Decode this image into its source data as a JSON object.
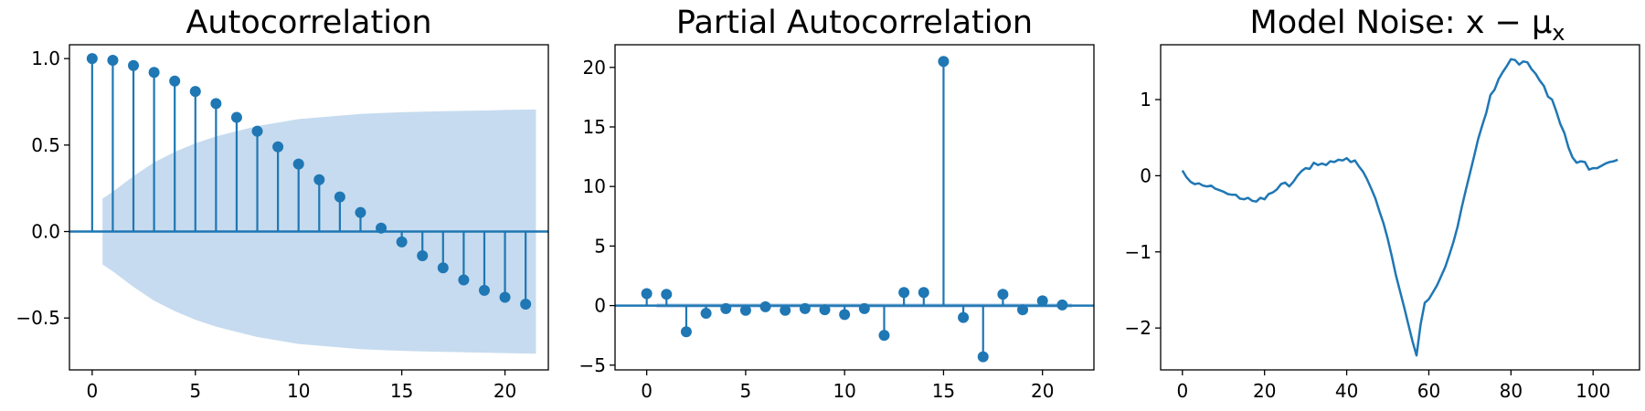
{
  "colors": {
    "series": "#1f77b4",
    "band": "#c6dbef",
    "axis": "#000000"
  },
  "chart_data": [
    {
      "type": "stem",
      "title": "Autocorrelation",
      "grid": false,
      "xlim": [
        -1.1,
        22.1
      ],
      "ylim": [
        -0.8,
        1.08
      ],
      "xticks": [
        0,
        5,
        10,
        15,
        20
      ],
      "xtick_labels": [
        "0",
        "5",
        "10",
        "15",
        "20"
      ],
      "yticks": [
        -0.5,
        0.0,
        0.5,
        1.0
      ],
      "ytick_labels": [
        "−0.5",
        "0.0",
        "0.5",
        "1.0"
      ],
      "x": [
        0,
        1,
        2,
        3,
        4,
        5,
        6,
        7,
        8,
        9,
        10,
        11,
        12,
        13,
        14,
        15,
        16,
        17,
        18,
        19,
        20,
        21
      ],
      "values": [
        1.0,
        0.99,
        0.96,
        0.92,
        0.87,
        0.81,
        0.74,
        0.66,
        0.58,
        0.49,
        0.39,
        0.3,
        0.2,
        0.11,
        0.02,
        -0.06,
        -0.14,
        -0.21,
        -0.28,
        -0.34,
        -0.38,
        -0.42
      ],
      "confidence_band": {
        "x": [
          0.5,
          1,
          2,
          3,
          4,
          5,
          6,
          7,
          8,
          9,
          10,
          11,
          12,
          13,
          14,
          15,
          16,
          17,
          18,
          19,
          20,
          21,
          21.5
        ],
        "upper": [
          0.19,
          0.23,
          0.32,
          0.4,
          0.46,
          0.51,
          0.55,
          0.58,
          0.61,
          0.63,
          0.65,
          0.66,
          0.67,
          0.68,
          0.685,
          0.69,
          0.693,
          0.696,
          0.698,
          0.7,
          0.703,
          0.705,
          0.706
        ]
      }
    },
    {
      "type": "stem",
      "title": "Partial Autocorrelation",
      "grid": false,
      "xlim": [
        -1.6,
        22.6
      ],
      "ylim": [
        -5.4,
        21.9
      ],
      "xticks": [
        0,
        5,
        10,
        15,
        20
      ],
      "xtick_labels": [
        "0",
        "5",
        "10",
        "15",
        "20"
      ],
      "yticks": [
        -5,
        0,
        5,
        10,
        15,
        20
      ],
      "ytick_labels": [
        "−5",
        "0",
        "5",
        "10",
        "15",
        "20"
      ],
      "x": [
        0,
        1,
        2,
        3,
        4,
        5,
        6,
        7,
        8,
        9,
        10,
        11,
        12,
        13,
        14,
        15,
        16,
        17,
        18,
        19,
        20,
        21
      ],
      "values": [
        1.0,
        0.95,
        -2.2,
        -0.65,
        -0.25,
        -0.4,
        -0.1,
        -0.4,
        -0.25,
        -0.35,
        -0.75,
        -0.25,
        -2.5,
        1.1,
        1.1,
        20.5,
        -1.0,
        -4.3,
        0.95,
        -0.35,
        0.4,
        0.05
      ],
      "confidence_band": {
        "upper": 0.19
      }
    },
    {
      "type": "line",
      "title": "Model Noise: x − μ",
      "title_subscript": "x",
      "grid": false,
      "xlim": [
        -5.3,
        111.3
      ],
      "ylim": [
        -2.55,
        1.72
      ],
      "xticks": [
        0,
        20,
        40,
        60,
        80,
        100
      ],
      "xtick_labels": [
        "0",
        "20",
        "40",
        "60",
        "80",
        "100"
      ],
      "yticks": [
        -2,
        -1,
        0,
        1
      ],
      "ytick_labels": [
        "−2",
        "−1",
        "0",
        "1"
      ],
      "x": [
        0,
        1,
        2,
        3,
        4,
        5,
        6,
        7,
        8,
        9,
        10,
        11,
        12,
        13,
        14,
        15,
        16,
        17,
        18,
        19,
        20,
        21,
        22,
        23,
        24,
        25,
        26,
        27,
        28,
        29,
        30,
        31,
        32,
        33,
        34,
        35,
        36,
        37,
        38,
        39,
        40,
        41,
        42,
        43,
        44,
        45,
        46,
        47,
        48,
        49,
        50,
        51,
        52,
        53,
        54,
        55,
        56,
        57,
        58,
        59,
        60,
        61,
        62,
        63,
        64,
        65,
        66,
        67,
        68,
        69,
        70,
        71,
        72,
        73,
        74,
        75,
        76,
        77,
        78,
        79,
        80,
        81,
        82,
        83,
        84,
        85,
        86,
        87,
        88,
        89,
        90,
        91,
        92,
        93,
        94,
        95,
        96,
        97,
        98,
        99,
        100,
        101,
        102,
        103,
        104,
        105,
        106
      ],
      "y": [
        0.07,
        -0.02,
        -0.08,
        -0.11,
        -0.1,
        -0.13,
        -0.14,
        -0.13,
        -0.17,
        -0.19,
        -0.21,
        -0.24,
        -0.25,
        -0.25,
        -0.3,
        -0.31,
        -0.29,
        -0.33,
        -0.34,
        -0.29,
        -0.31,
        -0.24,
        -0.22,
        -0.18,
        -0.11,
        -0.09,
        -0.14,
        -0.08,
        0.0,
        0.06,
        0.1,
        0.09,
        0.17,
        0.14,
        0.16,
        0.14,
        0.19,
        0.18,
        0.21,
        0.2,
        0.23,
        0.18,
        0.2,
        0.12,
        0.05,
        -0.05,
        -0.17,
        -0.3,
        -0.47,
        -0.63,
        -0.83,
        -1.06,
        -1.31,
        -1.52,
        -1.73,
        -1.95,
        -2.17,
        -2.36,
        -1.95,
        -1.67,
        -1.62,
        -1.53,
        -1.44,
        -1.32,
        -1.2,
        -1.04,
        -0.87,
        -0.67,
        -0.42,
        -0.19,
        0.03,
        0.25,
        0.48,
        0.66,
        0.83,
        1.06,
        1.13,
        1.27,
        1.36,
        1.44,
        1.53,
        1.52,
        1.46,
        1.5,
        1.49,
        1.4,
        1.34,
        1.25,
        1.18,
        1.04,
        1.0,
        0.85,
        0.68,
        0.56,
        0.37,
        0.24,
        0.17,
        0.19,
        0.18,
        0.08,
        0.1,
        0.1,
        0.13,
        0.16,
        0.18,
        0.19,
        0.21
      ]
    }
  ]
}
